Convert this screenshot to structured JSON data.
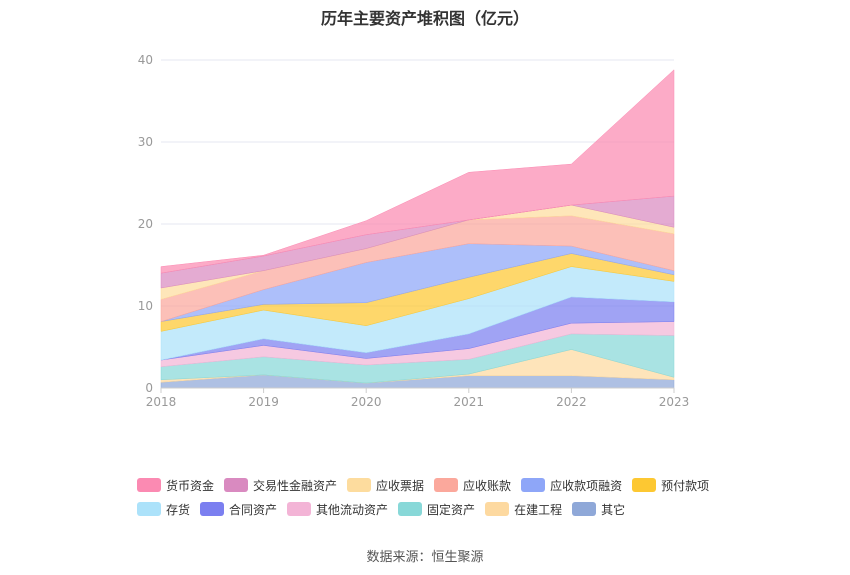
{
  "chart_data": {
    "type": "area",
    "title": "历年主要资产堆积图（亿元）",
    "x": [
      "2018",
      "2019",
      "2020",
      "2021",
      "2022",
      "2023"
    ],
    "ylim": [
      0,
      40
    ],
    "yticks": [
      0,
      10,
      20,
      30,
      40
    ],
    "stacked": true,
    "legend_position": "bottom",
    "series": [
      {
        "name": "其它",
        "color": "#8fa8d8",
        "values": [
          0.7,
          1.6,
          0.6,
          1.5,
          1.5,
          1.0
        ]
      },
      {
        "name": "在建工程",
        "color": "#fdd9a0",
        "values": [
          0.3,
          0.0,
          0.0,
          0.2,
          3.2,
          0.3
        ]
      },
      {
        "name": "固定资产",
        "color": "#88d8d8",
        "values": [
          1.6,
          2.2,
          2.2,
          1.8,
          1.9,
          5.1
        ]
      },
      {
        "name": "其他流动资产",
        "color": "#f3b4d6",
        "values": [
          0.8,
          1.4,
          0.8,
          1.3,
          1.3,
          1.7
        ]
      },
      {
        "name": "合同资产",
        "color": "#7b7ff0",
        "values": [
          0.0,
          0.8,
          0.7,
          1.8,
          3.2,
          2.4
        ]
      },
      {
        "name": "存货",
        "color": "#ace2fa",
        "values": [
          3.5,
          3.5,
          3.3,
          4.3,
          3.7,
          2.5
        ]
      },
      {
        "name": "预付款项",
        "color": "#fdc832",
        "values": [
          1.2,
          0.7,
          2.8,
          2.6,
          1.6,
          0.8
        ]
      },
      {
        "name": "应收款项融资",
        "color": "#8ea6f8",
        "values": [
          0.0,
          1.8,
          4.9,
          4.1,
          0.9,
          0.5
        ]
      },
      {
        "name": "应收账款",
        "color": "#fba89c",
        "values": [
          2.7,
          2.3,
          1.7,
          2.9,
          3.7,
          4.5
        ]
      },
      {
        "name": "应收票据",
        "color": "#fddc9e",
        "values": [
          1.4,
          0.0,
          0.0,
          0.0,
          1.3,
          0.8
        ]
      },
      {
        "name": "交易性金融资产",
        "color": "#d98ac0",
        "values": [
          1.8,
          1.8,
          1.7,
          0.0,
          0.0,
          3.8
        ]
      },
      {
        "name": "货币资金",
        "color": "#fb8ab2",
        "values": [
          0.8,
          0.1,
          1.7,
          5.8,
          5.0,
          15.4
        ]
      }
    ],
    "legend_rows": [
      [
        "货币资金",
        "交易性金融资产",
        "应收票据",
        "应收账款",
        "应收款项融资",
        "预付款项"
      ],
      [
        "存货",
        "合同资产",
        "其他流动资产",
        "固定资产",
        "在建工程",
        "其它"
      ]
    ],
    "source": "数据来源：恒生聚源"
  }
}
